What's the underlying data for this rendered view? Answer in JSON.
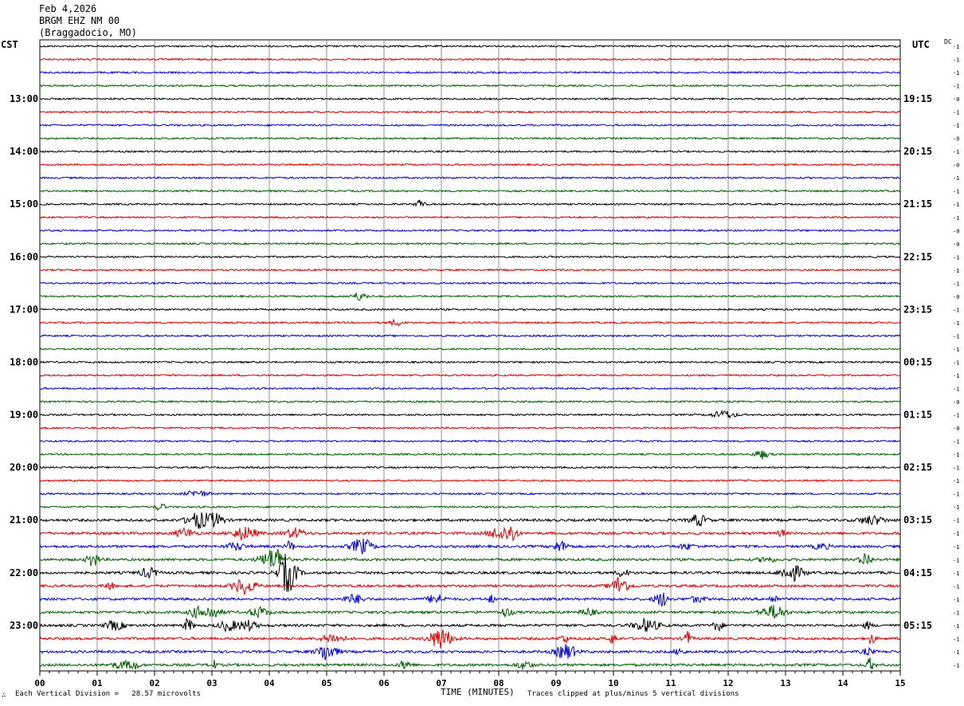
{
  "header": {
    "date": "Feb 4,2026",
    "station": "BRGM EHZ NM 00",
    "location": "(Braggadocio, MO)"
  },
  "chart_data": {
    "type": "line",
    "left_timezone": "CST",
    "right_timezone": "UTC",
    "dc_label": "DC",
    "left_hour_labels": [
      "13:00",
      "14:00",
      "15:00",
      "16:00",
      "17:00",
      "18:00",
      "19:00",
      "20:00",
      "21:00",
      "22:00",
      "23:00"
    ],
    "right_hour_labels": [
      "19:15",
      "20:15",
      "21:15",
      "22:15",
      "23:15",
      "00:15",
      "01:15",
      "02:15",
      "03:15",
      "04:15",
      "05:15"
    ],
    "x_ticks": [
      "00",
      "01",
      "02",
      "03",
      "04",
      "05",
      "06",
      "07",
      "08",
      "09",
      "10",
      "11",
      "12",
      "13",
      "14",
      "15"
    ],
    "xlim": [
      0,
      15
    ],
    "xlabel": "TIME (MINUTES)",
    "trace_colors": [
      "#000000",
      "#e00000",
      "#0000e0",
      "#006000"
    ],
    "dc_offsets": [
      "-1",
      "-1",
      "-1",
      "-1",
      "-0",
      "-1",
      "-1",
      "-0",
      "-1",
      "-0",
      "-1",
      "-1",
      "-1",
      "-1",
      "-0",
      "-0",
      "-1",
      "-1",
      "-1",
      "-0",
      "-1",
      "-1",
      "-1",
      "-1",
      "-1",
      "-1",
      "-1",
      "-0",
      "-1",
      "-0",
      "-1",
      "-1",
      "-1",
      "-1",
      "-1",
      "-1",
      "-1",
      "-1",
      "-1",
      "-1",
      "-1",
      "-1",
      "-1",
      "-1",
      "-1",
      "-1",
      "-1",
      "-1"
    ],
    "vertical_division": "Each Vertical Division =   28.57 microvolts",
    "clipping_note": "Traces clipped at plus/minus 5 vertical divisions"
  },
  "footer": {
    "logo_glyph": "∴"
  }
}
